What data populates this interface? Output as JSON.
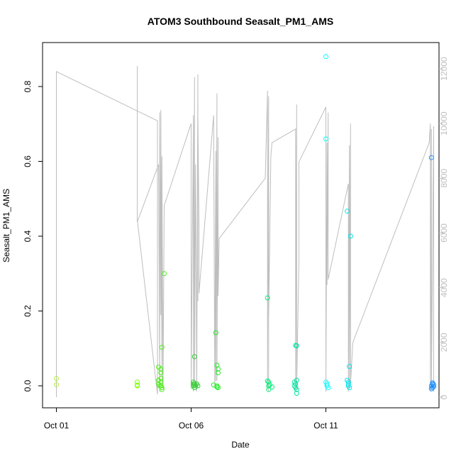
{
  "chart_data": {
    "type": "scatter",
    "title": "ATOM3 Southbound Seasalt_PM1_AMS",
    "xlabel": "Date",
    "ylabel": "Seasalt_PM1_AMS",
    "xlim": [
      "2017-10-01",
      "2017-10-15"
    ],
    "ylim": [
      -0.06,
      0.91
    ],
    "x_ticks": [
      {
        "value": "2017-10-01",
        "label": "Oct 01"
      },
      {
        "value": "2017-10-06",
        "label": "Oct 06"
      },
      {
        "value": "2017-10-11",
        "label": "Oct 11"
      }
    ],
    "y_ticks": [
      {
        "value": 0.0,
        "label": "0.0"
      },
      {
        "value": 0.2,
        "label": "0.2"
      },
      {
        "value": 0.4,
        "label": "0.4"
      },
      {
        "value": 0.6,
        "label": "0.6"
      },
      {
        "value": 0.8,
        "label": "0.8"
      }
    ],
    "y2_range": [
      -600,
      12900
    ],
    "y2_ticks": [
      {
        "value": 0,
        "label": "0"
      },
      {
        "value": 2000,
        "label": "2000"
      },
      {
        "value": 4000,
        "label": "4000"
      },
      {
        "value": 6000,
        "label": "6000"
      },
      {
        "value": 8000,
        "label": "8000"
      },
      {
        "value": 10000,
        "label": "10000"
      },
      {
        "value": 12000,
        "label": "12000"
      }
    ],
    "colors": {
      "altitude_line": "#bebebe",
      "axis": "#000000",
      "right_axis": "#bebebe"
    },
    "series": [
      {
        "color": "#b3ee3a",
        "points": [
          [
            "2017-10-01 00:00",
            0.02
          ],
          [
            "2017-10-01 00:00",
            0.003
          ]
        ]
      },
      {
        "color": "#7fff00",
        "points": [
          [
            "2017-10-04 00:00",
            0.01
          ],
          [
            "2017-10-04 00:00",
            0.002
          ],
          [
            "2017-10-04 00:00",
            0.0
          ]
        ]
      },
      {
        "color": "#4cee18",
        "points": [
          [
            "2017-10-04 19:00",
            0.05
          ],
          [
            "2017-10-04 19:00",
            0.015
          ],
          [
            "2017-10-04 19:00",
            0.005
          ],
          [
            "2017-10-04 21:00",
            0.045
          ],
          [
            "2017-10-04 21:00",
            0.035
          ],
          [
            "2017-10-04 21:00",
            0.02
          ],
          [
            "2017-10-04 21:00",
            0.01
          ],
          [
            "2017-10-04 21:00",
            0.0
          ],
          [
            "2017-10-04 22:00",
            0.103
          ],
          [
            "2017-10-04 22:00",
            -0.005
          ],
          [
            "2017-10-04 22:00",
            -0.01
          ],
          [
            "2017-10-05 00:00",
            0.3
          ],
          [
            "2017-10-04 20:00",
            0.0
          ]
        ]
      },
      {
        "color": "#32cd32",
        "points": [
          [
            "2017-10-06 02:00",
            0.01
          ],
          [
            "2017-10-06 02:00",
            0.005
          ],
          [
            "2017-10-06 02:00",
            0.0
          ],
          [
            "2017-10-06 03:00",
            0.078
          ],
          [
            "2017-10-06 03:00",
            0.005
          ],
          [
            "2017-10-06 03:00",
            -0.005
          ],
          [
            "2017-10-06 04:00",
            0.0
          ],
          [
            "2017-10-06 05:00",
            0.005
          ],
          [
            "2017-10-06 06:00",
            0.0
          ]
        ]
      },
      {
        "color": "#22ee22",
        "points": [
          [
            "2017-10-06 20:00",
            0.002
          ],
          [
            "2017-10-06 22:00",
            0.142
          ],
          [
            "2017-10-06 23:00",
            0.055
          ],
          [
            "2017-10-07 00:00",
            0.045
          ],
          [
            "2017-10-07 00:00",
            0.035
          ],
          [
            "2017-10-06 23:00",
            0.0
          ],
          [
            "2017-10-07 00:00",
            -0.005
          ],
          [
            "2017-10-06 23:00",
            -0.003
          ]
        ]
      },
      {
        "color": "#00ee76",
        "points": [
          [
            "2017-10-08 20:00",
            0.235
          ],
          [
            "2017-10-08 20:00",
            0.013
          ],
          [
            "2017-10-08 21:00",
            0.01
          ],
          [
            "2017-10-08 21:00",
            0.0
          ],
          [
            "2017-10-08 21:00",
            -0.01
          ],
          [
            "2017-10-08 22:00",
            0.003
          ],
          [
            "2017-10-09 00:00",
            -0.003
          ]
        ]
      },
      {
        "color": "#00e5a0",
        "points": [
          [
            "2017-10-09 20:00",
            0.01
          ],
          [
            "2017-10-09 20:00",
            0.0
          ],
          [
            "2017-10-09 21:00",
            0.108
          ],
          [
            "2017-10-09 22:00",
            0.107
          ],
          [
            "2017-10-09 21:00",
            0.005
          ],
          [
            "2017-10-09 22:00",
            0.015
          ],
          [
            "2017-10-09 22:00",
            -0.01
          ],
          [
            "2017-10-09 22:00",
            -0.02
          ],
          [
            "2017-10-09 21:00",
            -0.005
          ]
        ]
      },
      {
        "color": "#00ffff",
        "points": [
          [
            "2017-10-11 00:00",
            0.88
          ],
          [
            "2017-10-11 00:00",
            0.66
          ],
          [
            "2017-10-11 00:00",
            0.01
          ],
          [
            "2017-10-11 01:00",
            0.005
          ],
          [
            "2017-10-11 01:00",
            0.0
          ],
          [
            "2017-10-11 02:00",
            -0.005
          ]
        ]
      },
      {
        "color": "#00e5ee",
        "points": [
          [
            "2017-10-11 19:00",
            0.467
          ],
          [
            "2017-10-11 21:00",
            0.052
          ],
          [
            "2017-10-11 22:00",
            0.4
          ],
          [
            "2017-10-11 19:00",
            0.015
          ],
          [
            "2017-10-11 20:00",
            0.01
          ],
          [
            "2017-10-11 20:00",
            0.0
          ],
          [
            "2017-10-11 21:00",
            -0.005
          ],
          [
            "2017-10-11 20:00",
            0.005
          ]
        ]
      },
      {
        "color": "#1e90ff",
        "points": [
          [
            "2017-10-14 22:00",
            0.61
          ],
          [
            "2017-10-14 22:00",
            0.0
          ],
          [
            "2017-10-14 23:00",
            -0.005
          ],
          [
            "2017-10-14 23:00",
            0.005
          ],
          [
            "2017-10-15 00:00",
            0.003
          ],
          [
            "2017-10-14 22:00",
            -0.008
          ],
          [
            "2017-10-14 23:00",
            0.008
          ],
          [
            "2017-10-15 00:00",
            -0.002
          ]
        ]
      }
    ],
    "altitude_trace": [
      [
        "2017-10-01 00:00",
        0
      ],
      [
        "2017-10-01 00:00",
        11900
      ],
      [
        "2017-10-04 18:00",
        10100
      ],
      [
        "2017-10-04 18:00",
        100
      ],
      [
        "2017-10-04 00:00",
        6500
      ],
      [
        "2017-10-04 00:00",
        12100
      ],
      [
        "2017-10-04 00:00",
        6400
      ],
      [
        "2017-10-04 19:00",
        8500
      ],
      [
        "2017-10-04 20:00",
        200
      ],
      [
        "2017-10-04 20:00",
        10400
      ],
      [
        "2017-10-04 21:00",
        3000
      ],
      [
        "2017-10-04 21:00",
        10500
      ],
      [
        "2017-10-04 22:00",
        500
      ],
      [
        "2017-10-04 22:00",
        8800
      ],
      [
        "2017-10-04 23:00",
        300
      ],
      [
        "2017-10-05 00:00",
        7000
      ],
      [
        "2017-10-06 00:00",
        10000
      ],
      [
        "2017-10-06 00:00",
        300
      ],
      [
        "2017-10-06 02:00",
        10300
      ],
      [
        "2017-10-06 02:00",
        200
      ],
      [
        "2017-10-06 03:00",
        11700
      ],
      [
        "2017-10-06 03:00",
        500
      ],
      [
        "2017-10-06 04:00",
        8500
      ],
      [
        "2017-10-06 05:00",
        200
      ],
      [
        "2017-10-06 06:00",
        11800
      ],
      [
        "2017-10-06 06:00",
        3500
      ],
      [
        "2017-10-06 06:00",
        10300
      ],
      [
        "2017-10-06 07:00",
        6200
      ],
      [
        "2017-10-06 07:00",
        3800
      ],
      [
        "2017-10-06 20:00",
        10300
      ],
      [
        "2017-10-06 21:00",
        400
      ],
      [
        "2017-10-06 22:00",
        9000
      ],
      [
        "2017-10-06 22:00",
        600
      ],
      [
        "2017-10-06 23:00",
        11100
      ],
      [
        "2017-10-06 23:00",
        600
      ],
      [
        "2017-10-07 00:00",
        9500
      ],
      [
        "2017-10-07 00:00",
        3700
      ],
      [
        "2017-10-07 01:00",
        5800
      ],
      [
        "2017-10-08 18:00",
        8000
      ],
      [
        "2017-10-08 20:00",
        11200
      ],
      [
        "2017-10-08 20:00",
        300
      ],
      [
        "2017-10-08 21:00",
        11000
      ],
      [
        "2017-10-08 21:00",
        200
      ],
      [
        "2017-10-08 21:00",
        2800
      ],
      [
        "2017-10-08 23:00",
        8800
      ],
      [
        "2017-10-09 00:00",
        9300
      ],
      [
        "2017-10-09 21:00",
        9800
      ],
      [
        "2017-10-09 21:00",
        200
      ],
      [
        "2017-10-09 22:00",
        10700
      ],
      [
        "2017-10-09 22:00",
        300
      ],
      [
        "2017-10-10 00:00",
        5000
      ],
      [
        "2017-10-10 00:00",
        8600
      ],
      [
        "2017-10-11 00:00",
        10600
      ],
      [
        "2017-10-11 00:00",
        200
      ],
      [
        "2017-10-11 01:00",
        9300
      ],
      [
        "2017-10-11 01:00",
        4100
      ],
      [
        "2017-10-11 02:00",
        10400
      ],
      [
        "2017-10-11 02:00",
        7600
      ],
      [
        "2017-10-11 02:00",
        4300
      ],
      [
        "2017-10-11 20:00",
        7800
      ],
      [
        "2017-10-11 20:00",
        200
      ],
      [
        "2017-10-11 21:00",
        9200
      ],
      [
        "2017-10-11 21:00",
        300
      ],
      [
        "2017-10-11 22:00",
        10000
      ],
      [
        "2017-10-11 22:00",
        500
      ],
      [
        "2017-10-12 00:00",
        2000
      ],
      [
        "2017-10-14 20:00",
        9300
      ],
      [
        "2017-10-14 21:00",
        10000
      ],
      [
        "2017-10-14 21:00",
        200
      ],
      [
        "2017-10-14 22:00",
        9800
      ],
      [
        "2017-10-14 22:00",
        300
      ],
      [
        "2017-10-15 00:00",
        9900
      ],
      [
        "2017-10-15 00:00",
        200
      ]
    ]
  }
}
